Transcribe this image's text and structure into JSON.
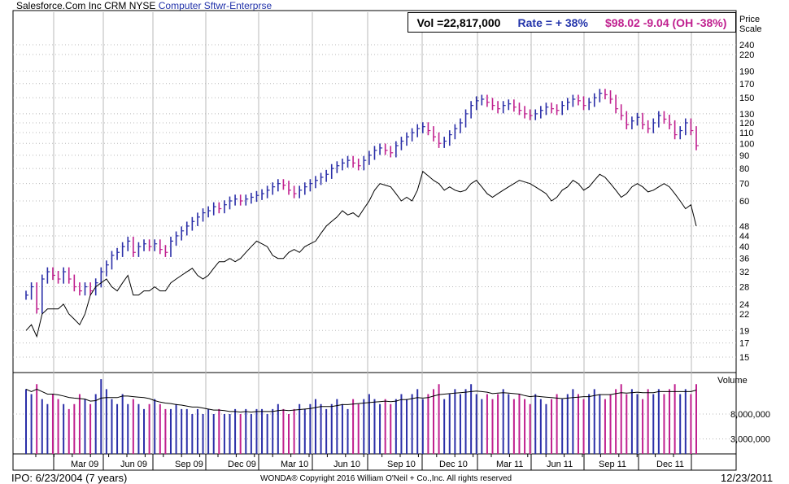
{
  "header": {
    "company": "Salesforce.Com Inc",
    "symbol": "CRM",
    "exchange": "NYSE",
    "industry": "Computer Sftwr-Enterprse"
  },
  "infobox": {
    "volume": "Vol =22,817,000",
    "rate": "Rate = + 38%",
    "price": "$98.02",
    "change": "-9.04 (OH -38%)"
  },
  "footer": {
    "ipo": "IPO: 6/23/2004 (7 years)",
    "copyright": "WONDA® Copyright 2016 William O'Neil + Co.,Inc. All rights reserved",
    "date": "12/23/2011"
  },
  "colors": {
    "up": "#2b2fa8",
    "down": "#c0208f",
    "line": "#000000",
    "grid": "#b8b8b8"
  },
  "chart_data": {
    "type": "bar",
    "price_scale_label": [
      "Price",
      "Scale"
    ],
    "volume_label": "Volume",
    "price_ticks": [
      240,
      220,
      190,
      170,
      150,
      130,
      120,
      110,
      100,
      90,
      80,
      70,
      60,
      48,
      44,
      40,
      36,
      32,
      28,
      24,
      22,
      19,
      17,
      15
    ],
    "price_tick_labels": [
      "240",
      "220",
      "190",
      "170",
      "150",
      "130",
      "120",
      "110",
      "100",
      "90",
      "80",
      "70",
      "60",
      "48",
      "44",
      "40",
      "36",
      "32",
      "28",
      "24",
      "22",
      "19",
      "17",
      "15"
    ],
    "volume_ticks": [
      8000000,
      3000000
    ],
    "volume_tick_labels": [
      "8,000,000",
      "3,000,000"
    ],
    "x_labels": [
      "Mar 09",
      "Jun 09",
      "Sep 09",
      "Dec 09",
      "Mar 10",
      "Jun 10",
      "Sep 10",
      "Dec 10",
      "Mar 11",
      "Jun 11",
      "Sep 11",
      "Dec 11"
    ],
    "weekly_close": [
      26,
      28,
      23,
      30,
      32,
      31,
      30,
      32,
      30,
      28,
      27,
      28,
      27,
      29,
      32,
      34,
      37,
      38,
      40,
      42,
      38,
      40,
      41,
      40,
      41,
      39,
      38,
      42,
      44,
      46,
      48,
      50,
      52,
      54,
      55,
      57,
      56,
      58,
      60,
      61,
      60,
      61,
      62,
      63,
      64,
      66,
      68,
      70,
      69,
      66,
      64,
      66,
      68,
      70,
      72,
      74,
      76,
      80,
      82,
      84,
      86,
      84,
      82,
      86,
      90,
      94,
      96,
      94,
      92,
      98,
      102,
      106,
      110,
      114,
      116,
      112,
      106,
      100,
      102,
      108,
      114,
      120,
      130,
      140,
      146,
      148,
      144,
      140,
      136,
      140,
      142,
      138,
      134,
      130,
      128,
      130,
      134,
      138,
      136,
      134,
      140,
      144,
      148,
      146,
      140,
      144,
      150,
      156,
      154,
      148,
      136,
      128,
      118,
      122,
      126,
      118,
      114,
      120,
      128,
      124,
      118,
      108,
      112,
      120,
      112,
      98
    ],
    "relative_strength": [
      19,
      20,
      18,
      22,
      23,
      23,
      23,
      24,
      22,
      21,
      20,
      22,
      26,
      28,
      29,
      30,
      28,
      27,
      29,
      31,
      26,
      26,
      27,
      27,
      28,
      27,
      27,
      29,
      30,
      31,
      32,
      33,
      31,
      30,
      31,
      33,
      35,
      35,
      36,
      35,
      36,
      38,
      40,
      42,
      41,
      40,
      37,
      36,
      36,
      38,
      39,
      38,
      40,
      41,
      42,
      45,
      48,
      50,
      52,
      55,
      53,
      54,
      52,
      56,
      60,
      66,
      70,
      69,
      68,
      64,
      60,
      62,
      60,
      66,
      78,
      75,
      72,
      70,
      66,
      68,
      66,
      65,
      66,
      70,
      72,
      68,
      64,
      62,
      64,
      66,
      68,
      70,
      72,
      71,
      70,
      68,
      66,
      64,
      60,
      62,
      66,
      68,
      72,
      70,
      66,
      68,
      72,
      76,
      74,
      70,
      66,
      62,
      64,
      68,
      70,
      68,
      65,
      66,
      68,
      70,
      68,
      64,
      60,
      56,
      58,
      48
    ],
    "weekly_volume": [
      13,
      12,
      14,
      11,
      10,
      12,
      11,
      10,
      9,
      10,
      12,
      11,
      10,
      12,
      15,
      13,
      11,
      10,
      12,
      10,
      11,
      10,
      9,
      10,
      11,
      10,
      9,
      9,
      10,
      9,
      9,
      8,
      9,
      8,
      9,
      8,
      9,
      8,
      8,
      9,
      8,
      9,
      8,
      9,
      9,
      8,
      9,
      10,
      9,
      8,
      9,
      10,
      9,
      10,
      11,
      10,
      9,
      10,
      11,
      10,
      9,
      11,
      10,
      11,
      12,
      11,
      10,
      11,
      10,
      11,
      12,
      11,
      12,
      13,
      11,
      12,
      13,
      14,
      11,
      12,
      13,
      12,
      13,
      14,
      12,
      11,
      12,
      11,
      12,
      13,
      12,
      11,
      12,
      11,
      10,
      12,
      11,
      10,
      11,
      12,
      11,
      12,
      13,
      12,
      11,
      12,
      13,
      12,
      11,
      12,
      13,
      14,
      12,
      13,
      12,
      11,
      13,
      12,
      13,
      12,
      13,
      14,
      12,
      13,
      12,
      14
    ]
  }
}
